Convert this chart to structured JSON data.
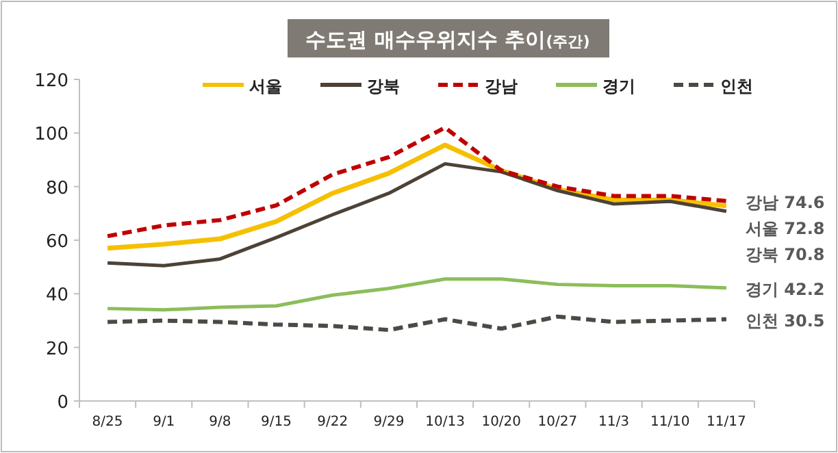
{
  "chart_data": {
    "type": "line",
    "title": "수도권 매수우위지수 추이(주간)",
    "categories": [
      "8/25",
      "9/1",
      "9/8",
      "9/15",
      "9/22",
      "9/29",
      "10/13",
      "10/20",
      "10/27",
      "11/3",
      "11/10",
      "11/17"
    ],
    "series": [
      {
        "name": "서울",
        "color": "#f5c000",
        "line_style": "solid",
        "values": [
          57,
          58.5,
          60.5,
          67,
          77.5,
          85,
          95.5,
          86,
          79,
          75,
          75,
          72.8
        ]
      },
      {
        "name": "강북",
        "color": "#4d4238",
        "line_style": "solid",
        "values": [
          51.5,
          50.5,
          53,
          61,
          69.5,
          77.5,
          88.5,
          85.5,
          78.5,
          73.5,
          74.5,
          70.8
        ]
      },
      {
        "name": "강남",
        "color": "#c00000",
        "line_style": "dashed",
        "values": [
          61.5,
          65.5,
          67.5,
          73,
          84.5,
          91,
          102,
          86,
          80,
          76.5,
          76.5,
          74.6
        ]
      },
      {
        "name": "경기",
        "color": "#8cbd5a",
        "line_style": "solid",
        "values": [
          34.5,
          34,
          35,
          35.5,
          39.5,
          42,
          45.5,
          45.5,
          43.5,
          43,
          43,
          42.2
        ]
      },
      {
        "name": "인천",
        "color": "#4d4a45",
        "line_style": "dashed",
        "values": [
          29.5,
          30,
          29.5,
          28.5,
          28,
          26.5,
          30.5,
          27,
          31.5,
          29.5,
          30,
          30.5
        ]
      }
    ],
    "ylim": [
      0,
      120
    ],
    "yticks": [
      0,
      20,
      40,
      60,
      80,
      100,
      120
    ],
    "grid": false,
    "legend": "top",
    "marker": "none",
    "annotations": [
      {
        "text": "강남 74.6",
        "x": "11/17",
        "y": 74.6
      },
      {
        "text": "서울 72.8",
        "x": "11/17",
        "y": 72.8
      },
      {
        "text": "강북 70.8",
        "x": "11/17",
        "y": 70.8
      },
      {
        "text": "경기 42.2",
        "x": "11/17",
        "y": 42.2
      },
      {
        "text": "인천 30.5",
        "x": "11/17",
        "y": 30.5
      }
    ]
  }
}
